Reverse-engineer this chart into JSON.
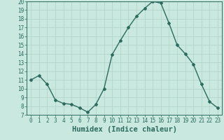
{
  "x": [
    0,
    1,
    2,
    3,
    4,
    5,
    6,
    7,
    8,
    9,
    10,
    11,
    12,
    13,
    14,
    15,
    16,
    17,
    18,
    19,
    20,
    21,
    22,
    23
  ],
  "y": [
    11,
    11.5,
    10.5,
    8.7,
    8.3,
    8.2,
    7.8,
    7.3,
    8.2,
    10.0,
    13.9,
    15.5,
    17.0,
    18.3,
    19.2,
    20.0,
    19.8,
    17.5,
    15.0,
    14.0,
    12.8,
    10.5,
    8.5,
    7.8
  ],
  "xlabel": "Humidex (Indice chaleur)",
  "xlim": [
    -0.5,
    23.5
  ],
  "ylim": [
    7,
    20
  ],
  "yticks": [
    7,
    8,
    9,
    10,
    11,
    12,
    13,
    14,
    15,
    16,
    17,
    18,
    19,
    20
  ],
  "xticks": [
    0,
    1,
    2,
    3,
    4,
    5,
    6,
    7,
    8,
    9,
    10,
    11,
    12,
    13,
    14,
    15,
    16,
    17,
    18,
    19,
    20,
    21,
    22,
    23
  ],
  "line_color": "#2d6b5e",
  "marker": "D",
  "marker_size": 2.0,
  "bg_color": "#c8e8e0",
  "grid_color": "#aed0c6",
  "tick_label_color": "#2d6b5e",
  "xlabel_color": "#2d6b5e",
  "xlabel_fontsize": 7.5,
  "tick_fontsize": 5.5,
  "line_width": 1.0
}
